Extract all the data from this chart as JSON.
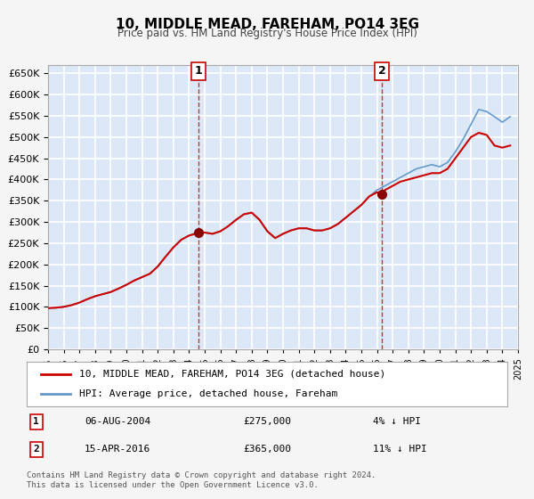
{
  "title": "10, MIDDLE MEAD, FAREHAM, PO14 3EG",
  "subtitle": "Price paid vs. HM Land Registry's House Price Index (HPI)",
  "bg_color": "#f0f4ff",
  "plot_bg_color": "#dce8f8",
  "grid_color": "#ffffff",
  "red_line_color": "#cc0000",
  "blue_line_color": "#6699cc",
  "marker_color": "#880000",
  "ylim": [
    0,
    670000
  ],
  "yticks": [
    0,
    50000,
    100000,
    150000,
    200000,
    250000,
    300000,
    350000,
    400000,
    450000,
    500000,
    550000,
    600000,
    650000
  ],
  "xlim_start": 1995.0,
  "xlim_end": 2025.0,
  "sale1_x": 2004.6,
  "sale1_y": 275000,
  "sale2_x": 2016.3,
  "sale2_y": 365000,
  "legend_label_red": "10, MIDDLE MEAD, FAREHAM, PO14 3EG (detached house)",
  "legend_label_blue": "HPI: Average price, detached house, Fareham",
  "table_row1_num": "1",
  "table_row1_date": "06-AUG-2004",
  "table_row1_price": "£275,000",
  "table_row1_hpi": "4% ↓ HPI",
  "table_row2_num": "2",
  "table_row2_date": "15-APR-2016",
  "table_row2_price": "£365,000",
  "table_row2_hpi": "11% ↓ HPI",
  "footer": "Contains HM Land Registry data © Crown copyright and database right 2024.\nThis data is licensed under the Open Government Licence v3.0.",
  "hpi_x": [
    1995.0,
    1995.5,
    1996.0,
    1996.5,
    1997.0,
    1997.5,
    1998.0,
    1998.5,
    1999.0,
    1999.5,
    2000.0,
    2000.5,
    2001.0,
    2001.5,
    2002.0,
    2002.5,
    2003.0,
    2003.5,
    2004.0,
    2004.5,
    2005.0,
    2005.5,
    2006.0,
    2006.5,
    2007.0,
    2007.5,
    2008.0,
    2008.5,
    2009.0,
    2009.5,
    2010.0,
    2010.5,
    2011.0,
    2011.5,
    2012.0,
    2012.5,
    2013.0,
    2013.5,
    2014.0,
    2014.5,
    2015.0,
    2015.5,
    2016.0,
    2016.5,
    2017.0,
    2017.5,
    2018.0,
    2018.5,
    2019.0,
    2019.5,
    2020.0,
    2020.5,
    2021.0,
    2021.5,
    2022.0,
    2022.5,
    2023.0,
    2023.5,
    2024.0,
    2024.5
  ],
  "hpi_y": [
    97000,
    98000,
    100000,
    104000,
    110000,
    118000,
    125000,
    130000,
    135000,
    143000,
    152000,
    162000,
    170000,
    178000,
    195000,
    218000,
    240000,
    258000,
    268000,
    275000,
    275000,
    272000,
    278000,
    290000,
    305000,
    318000,
    322000,
    305000,
    278000,
    262000,
    272000,
    280000,
    285000,
    285000,
    280000,
    280000,
    285000,
    295000,
    310000,
    325000,
    340000,
    360000,
    375000,
    385000,
    395000,
    405000,
    415000,
    425000,
    430000,
    435000,
    430000,
    440000,
    465000,
    495000,
    530000,
    565000,
    560000,
    548000,
    535000,
    548000
  ],
  "red_x": [
    1995.0,
    1995.5,
    1996.0,
    1996.5,
    1997.0,
    1997.5,
    1998.0,
    1998.5,
    1999.0,
    1999.5,
    2000.0,
    2000.5,
    2001.0,
    2001.5,
    2002.0,
    2002.5,
    2003.0,
    2003.5,
    2004.0,
    2004.5,
    2004.6,
    2005.0,
    2005.5,
    2006.0,
    2006.5,
    2007.0,
    2007.5,
    2008.0,
    2008.5,
    2009.0,
    2009.5,
    2010.0,
    2010.5,
    2011.0,
    2011.5,
    2012.0,
    2012.5,
    2013.0,
    2013.5,
    2014.0,
    2014.5,
    2015.0,
    2015.5,
    2016.0,
    2016.3,
    2016.5,
    2017.0,
    2017.5,
    2018.0,
    2018.5,
    2019.0,
    2019.5,
    2020.0,
    2020.5,
    2021.0,
    2021.5,
    2022.0,
    2022.5,
    2023.0,
    2023.5,
    2024.0,
    2024.5
  ],
  "red_y": [
    97000,
    98000,
    100000,
    104000,
    110000,
    118000,
    125000,
    130000,
    135000,
    143000,
    152000,
    162000,
    170000,
    178000,
    195000,
    218000,
    240000,
    258000,
    268000,
    273000,
    275000,
    275000,
    272000,
    278000,
    290000,
    305000,
    318000,
    322000,
    305000,
    278000,
    262000,
    272000,
    280000,
    285000,
    285000,
    280000,
    280000,
    285000,
    295000,
    310000,
    325000,
    340000,
    360000,
    370000,
    365000,
    375000,
    385000,
    395000,
    400000,
    405000,
    410000,
    415000,
    415000,
    425000,
    450000,
    475000,
    500000,
    510000,
    505000,
    480000,
    475000,
    480000
  ]
}
